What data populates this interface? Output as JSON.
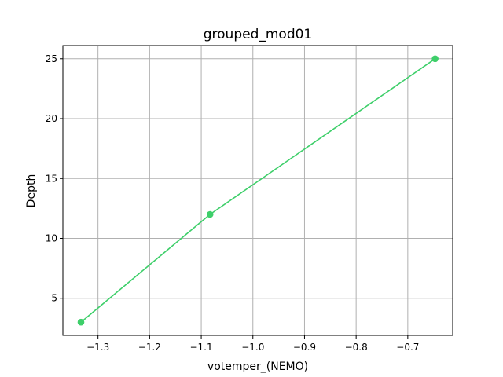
{
  "chart_data": {
    "type": "line",
    "title": "grouped_mod01",
    "xlabel": "votemper_(NEMO)",
    "ylabel": "Depth",
    "series": [
      {
        "x": [
          -1.333,
          -1.083,
          -0.647
        ],
        "y": [
          3,
          12,
          25
        ],
        "color": "#3ecf6a",
        "marker": "circle"
      }
    ],
    "xlim": [
      -1.368,
      -0.613
    ],
    "ylim": [
      1.9,
      26.1
    ],
    "xticks": [
      -1.3,
      -1.2,
      -1.1,
      -1.0,
      -0.9,
      -0.8,
      -0.7
    ],
    "xtick_labels": [
      "−1.3",
      "−1.2",
      "−1.1",
      "−1.0",
      "−0.9",
      "−0.8",
      "−0.7"
    ],
    "yticks": [
      5,
      10,
      15,
      20,
      25
    ],
    "ytick_labels": [
      "5",
      "10",
      "15",
      "20",
      "25"
    ],
    "grid": true
  }
}
